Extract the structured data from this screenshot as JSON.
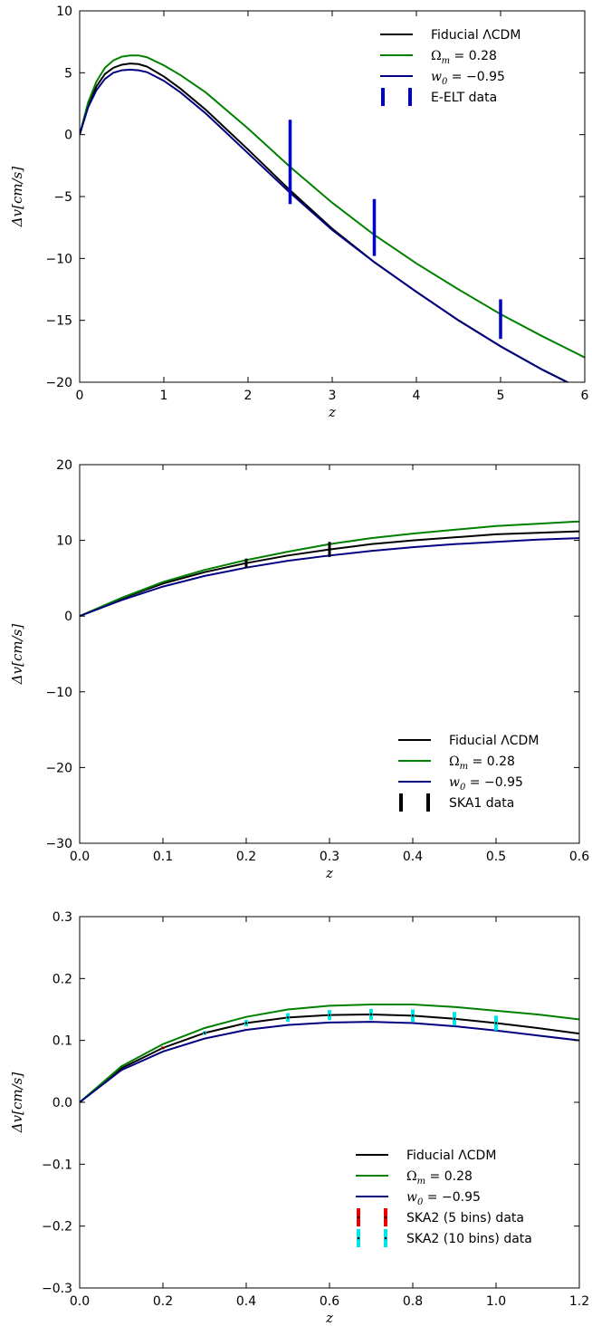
{
  "chart_data": [
    {
      "type": "line",
      "xlabel": "z",
      "ylabel": "Δv[cm/s]",
      "xlim": [
        0,
        6
      ],
      "ylim": [
        -20,
        10
      ],
      "xticks": [
        0,
        1,
        2,
        3,
        4,
        5,
        6
      ],
      "yticks": [
        -20,
        -15,
        -10,
        -5,
        0,
        5,
        10
      ],
      "xtick_labels": [
        "0",
        "1",
        "2",
        "3",
        "4",
        "5",
        "6"
      ],
      "ytick_labels": [
        "−20",
        "−15",
        "−10",
        "−5",
        "0",
        "5",
        "10"
      ],
      "legend_position": "top-right",
      "series": [
        {
          "name": "Fiducial ΛCDM",
          "color": "#000000",
          "x": [
            0,
            0.1,
            0.2,
            0.3,
            0.4,
            0.5,
            0.6,
            0.7,
            0.8,
            1.0,
            1.2,
            1.5,
            2.0,
            2.5,
            3.0,
            3.5,
            4.0,
            4.5,
            5.0,
            5.5,
            6.0
          ],
          "y": [
            0,
            2.4,
            3.9,
            4.9,
            5.4,
            5.65,
            5.75,
            5.7,
            5.5,
            4.7,
            3.7,
            2.0,
            -1.2,
            -4.5,
            -7.6,
            -10.3,
            -12.7,
            -15.0,
            -17.1,
            -19.0,
            -20.7
          ]
        },
        {
          "name": "Ωm = 0.28",
          "color": "#008000",
          "x": [
            0,
            0.1,
            0.2,
            0.3,
            0.4,
            0.5,
            0.6,
            0.7,
            0.8,
            1.0,
            1.2,
            1.5,
            2.0,
            2.5,
            3.0,
            3.5,
            4.0,
            4.5,
            5.0,
            5.5,
            6.0
          ],
          "y": [
            0,
            2.6,
            4.3,
            5.4,
            6.0,
            6.3,
            6.4,
            6.4,
            6.25,
            5.6,
            4.8,
            3.4,
            0.5,
            -2.6,
            -5.5,
            -8.1,
            -10.4,
            -12.5,
            -14.5,
            -16.3,
            -18.0
          ]
        },
        {
          "name": "w0 = −0.95",
          "color": "#000080",
          "x": [
            0,
            0.1,
            0.2,
            0.3,
            0.4,
            0.5,
            0.6,
            0.7,
            0.8,
            1.0,
            1.2,
            1.5,
            2.0,
            2.5,
            3.0,
            3.5,
            4.0,
            4.5,
            5.0,
            5.5,
            6.0
          ],
          "y": [
            0,
            2.2,
            3.6,
            4.5,
            5.0,
            5.2,
            5.25,
            5.2,
            5.05,
            4.35,
            3.4,
            1.7,
            -1.5,
            -4.7,
            -7.7,
            -10.3,
            -12.7,
            -15.0,
            -17.1,
            -19.0,
            -20.7
          ]
        }
      ],
      "errorbars": [
        {
          "name": "E-ELT data",
          "color": "#0000cc",
          "x": [
            2.5,
            3.5,
            5.0
          ],
          "y": [
            -2.2,
            -7.5,
            -14.9
          ],
          "yerr": [
            3.4,
            2.3,
            1.6
          ]
        }
      ],
      "legend_labels": [
        {
          "main": "Fiducial ΛCDM"
        },
        {
          "main": "Ω",
          "sub": "m",
          "rest": " = 0.28"
        },
        {
          "main": "w",
          "sub": "0",
          "rest": " = −0.95"
        },
        {
          "main": "E-ELT data"
        }
      ]
    },
    {
      "type": "line",
      "xlabel": "z",
      "ylabel": "Δv[cm/s]",
      "xlim": [
        0,
        0.6
      ],
      "ylim": [
        -30,
        20
      ],
      "xticks": [
        0,
        0.1,
        0.2,
        0.3,
        0.4,
        0.5,
        0.6
      ],
      "yticks": [
        -30,
        -20,
        -10,
        0,
        10,
        20
      ],
      "xtick_labels": [
        "0.0",
        "0.1",
        "0.2",
        "0.3",
        "0.4",
        "0.5",
        "0.6"
      ],
      "ytick_labels": [
        "−30",
        "−20",
        "−10",
        "0",
        "10",
        "20"
      ],
      "legend_position": "bottom-right",
      "series": [
        {
          "name": "Fiducial ΛCDM",
          "color": "#000000",
          "x": [
            0,
            0.05,
            0.1,
            0.15,
            0.2,
            0.25,
            0.3,
            0.35,
            0.4,
            0.45,
            0.5,
            0.55,
            0.6
          ],
          "y": [
            0,
            2.3,
            4.3,
            5.8,
            7.0,
            8.0,
            8.8,
            9.5,
            10.0,
            10.4,
            10.8,
            11.0,
            11.2
          ]
        },
        {
          "name": "Ωm = 0.28",
          "color": "#008000",
          "x": [
            0,
            0.05,
            0.1,
            0.15,
            0.2,
            0.25,
            0.3,
            0.35,
            0.4,
            0.45,
            0.5,
            0.55,
            0.6
          ],
          "y": [
            0,
            2.4,
            4.5,
            6.1,
            7.4,
            8.5,
            9.5,
            10.3,
            10.9,
            11.4,
            11.9,
            12.2,
            12.5
          ]
        },
        {
          "name": "w0 = −0.95",
          "color": "#000080",
          "x": [
            0,
            0.05,
            0.1,
            0.15,
            0.2,
            0.25,
            0.3,
            0.35,
            0.4,
            0.45,
            0.5,
            0.55,
            0.6
          ],
          "y": [
            0,
            2.1,
            3.9,
            5.3,
            6.4,
            7.3,
            8.0,
            8.6,
            9.1,
            9.5,
            9.8,
            10.1,
            10.3
          ]
        }
      ],
      "errorbars": [
        {
          "name": "SKA1 data",
          "color": "#000000",
          "x": [
            0.2,
            0.3
          ],
          "y": [
            7.0,
            8.8
          ],
          "yerr": [
            0.6,
            1.0
          ]
        }
      ],
      "legend_labels": [
        {
          "main": "Fiducial ΛCDM"
        },
        {
          "main": "Ω",
          "sub": "m",
          "rest": " = 0.28"
        },
        {
          "main": "w",
          "sub": "0",
          "rest": " = −0.95"
        },
        {
          "main": "SKA1 data"
        }
      ]
    },
    {
      "type": "line",
      "xlabel": "z",
      "ylabel": "Δv[cm/s]",
      "xlim": [
        0,
        1.2
      ],
      "ylim": [
        -0.3,
        0.3
      ],
      "xticks": [
        0,
        0.2,
        0.4,
        0.6,
        0.8,
        1.0,
        1.2
      ],
      "yticks": [
        -0.3,
        -0.2,
        -0.1,
        0,
        0.1,
        0.2,
        0.3
      ],
      "xtick_labels": [
        "0.0",
        "0.2",
        "0.4",
        "0.6",
        "0.8",
        "1.0",
        "1.2"
      ],
      "ytick_labels": [
        "−0.3",
        "−0.2",
        "−0.1",
        "0.0",
        "0.1",
        "0.2",
        "0.3"
      ],
      "legend_position": "bottom-right",
      "series": [
        {
          "name": "Fiducial ΛCDM",
          "color": "#000000",
          "x": [
            0,
            0.1,
            0.2,
            0.3,
            0.4,
            0.5,
            0.6,
            0.7,
            0.8,
            0.9,
            1.0,
            1.1,
            1.2
          ],
          "y": [
            0,
            0.055,
            0.088,
            0.112,
            0.128,
            0.137,
            0.141,
            0.142,
            0.14,
            0.135,
            0.128,
            0.12,
            0.111
          ]
        },
        {
          "name": "Ωm = 0.28",
          "color": "#008000",
          "x": [
            0,
            0.1,
            0.2,
            0.3,
            0.4,
            0.5,
            0.6,
            0.7,
            0.8,
            0.9,
            1.0,
            1.1,
            1.2
          ],
          "y": [
            0,
            0.058,
            0.094,
            0.12,
            0.138,
            0.15,
            0.156,
            0.158,
            0.158,
            0.154,
            0.148,
            0.142,
            0.134
          ]
        },
        {
          "name": "w0 = −0.95",
          "color": "#000080",
          "x": [
            0,
            0.1,
            0.2,
            0.3,
            0.4,
            0.5,
            0.6,
            0.7,
            0.8,
            0.9,
            1.0,
            1.1,
            1.2
          ],
          "y": [
            0,
            0.052,
            0.082,
            0.103,
            0.117,
            0.125,
            0.129,
            0.13,
            0.128,
            0.123,
            0.116,
            0.108,
            0.1
          ]
        }
      ],
      "errorbars": [
        {
          "name": "SKA2 (5 bins) data",
          "color": "#ee0000",
          "x": [
            0.2,
            0.4,
            0.6,
            0.8,
            1.0
          ],
          "y": [
            0.088,
            0.128,
            0.141,
            0.14,
            0.128
          ],
          "yerr": [
            0.002,
            0.004,
            0.006,
            0.008,
            0.009
          ]
        },
        {
          "name": "SKA2 (10 bins) data",
          "color": "#00e5e5",
          "x": [
            0.3,
            0.4,
            0.5,
            0.6,
            0.7,
            0.8,
            0.9,
            1.0
          ],
          "y": [
            0.112,
            0.128,
            0.137,
            0.141,
            0.142,
            0.14,
            0.135,
            0.128
          ],
          "yerr": [
            0.003,
            0.005,
            0.007,
            0.008,
            0.009,
            0.01,
            0.011,
            0.012
          ]
        }
      ],
      "legend_labels": [
        {
          "main": "Fiducial ΛCDM"
        },
        {
          "main": "Ω",
          "sub": "m",
          "rest": " = 0.28"
        },
        {
          "main": "w",
          "sub": "0",
          "rest": " = −0.95"
        },
        {
          "main": "SKA2 (5 bins) data"
        },
        {
          "main": "SKA2 (10 bins) data"
        }
      ]
    }
  ]
}
